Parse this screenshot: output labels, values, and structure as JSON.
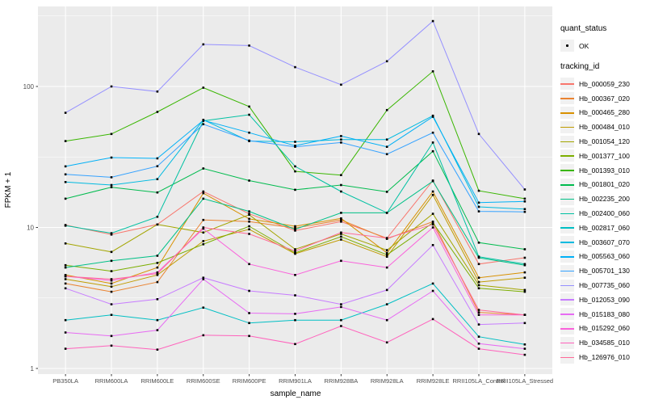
{
  "chart_data": {
    "type": "line",
    "title": "",
    "xlabel": "sample_name",
    "ylabel": "FPKM + 1",
    "y_scale": "log10",
    "ylim": [
      0.9,
      370
    ],
    "y_ticks": [
      "1",
      "10",
      "100"
    ],
    "y_tick_values": [
      1,
      10,
      100
    ],
    "grid": "on",
    "legend_position": "right",
    "x_categories": [
      "PB350LA",
      "RRIM600LA",
      "RRIM600LE",
      "RRIM600SE",
      "RRIM600PE",
      "RRIM901LA",
      "RRIM928BA",
      "RRIM928LA",
      "RRIM928LE",
      "RRII105LA_Control",
      "RRII105LA_Stressed"
    ],
    "legend": {
      "quant_title": "quant_status",
      "ok_label": "OK",
      "series_title": "tracking_id"
    },
    "series": [
      {
        "id": "Hb_000059_230",
        "color": "#F8766D",
        "values": [
          10.4,
          8.9,
          10.5,
          18,
          12.5,
          9.5,
          11,
          8.4,
          21.5,
          5.5,
          6.1
        ]
      },
      {
        "id": "Hb_000367_020",
        "color": "#EA8331",
        "values": [
          4.0,
          3.5,
          4.1,
          11.3,
          11.0,
          9.9,
          11.3,
          8.3,
          11.0,
          2.5,
          2.4
        ]
      },
      {
        "id": "Hb_000465_280",
        "color": "#D89000",
        "values": [
          4.6,
          4.0,
          5.2,
          17.5,
          11.5,
          10.2,
          11.6,
          6.6,
          18.0,
          4.4,
          4.8
        ]
      },
      {
        "id": "Hb_000484_010",
        "color": "#C09B00",
        "values": [
          4.3,
          3.8,
          4.6,
          8.0,
          9.7,
          6.5,
          8.2,
          6.2,
          17.0,
          4.1,
          4.4
        ]
      },
      {
        "id": "Hb_001054_120",
        "color": "#A3A500",
        "values": [
          7.7,
          6.7,
          10.5,
          9.2,
          12.3,
          7.0,
          9.0,
          6.9,
          12.5,
          3.9,
          3.6
        ]
      },
      {
        "id": "Hb_001377_100",
        "color": "#7CAE00",
        "values": [
          5.4,
          4.9,
          5.6,
          7.6,
          10.2,
          6.6,
          8.6,
          6.4,
          10.8,
          3.7,
          3.5
        ]
      },
      {
        "id": "Hb_001393_010",
        "color": "#39B600",
        "values": [
          41,
          46,
          66,
          98,
          72,
          25,
          23.5,
          68,
          128,
          18.2,
          16
        ]
      },
      {
        "id": "Hb_001801_020",
        "color": "#00BB4E",
        "values": [
          16,
          19.3,
          17.7,
          26.2,
          21.5,
          18.5,
          20,
          17.9,
          34.7,
          7.8,
          7.0
        ]
      },
      {
        "id": "Hb_002235_200",
        "color": "#00C087",
        "values": [
          5.2,
          5.8,
          6.3,
          16,
          13,
          9.7,
          12.7,
          12.7,
          21.3,
          6.1,
          5.4
        ]
      },
      {
        "id": "Hb_002400_060",
        "color": "#00C1A3",
        "values": [
          10.3,
          9.1,
          11.9,
          57,
          63,
          27.1,
          18,
          12.7,
          40,
          6.2,
          5.5
        ]
      },
      {
        "id": "Hb_002817_060",
        "color": "#00BFC4",
        "values": [
          2.2,
          2.4,
          2.2,
          2.7,
          2.1,
          2.2,
          2.2,
          2.85,
          4.0,
          1.68,
          1.48
        ]
      },
      {
        "id": "Hb_003607_070",
        "color": "#00BAE0",
        "values": [
          21,
          20,
          22,
          58,
          41,
          40.5,
          42,
          42,
          62,
          14,
          13.5
        ]
      },
      {
        "id": "Hb_005563_060",
        "color": "#00B0F6",
        "values": [
          27.1,
          31.3,
          30.9,
          57.5,
          47,
          38,
          44.5,
          37.3,
          61,
          15,
          15.3
        ]
      },
      {
        "id": "Hb_005701_130",
        "color": "#35A2FF",
        "values": [
          23.8,
          22.7,
          27.2,
          54,
          41.3,
          37.3,
          40,
          33.1,
          47,
          13,
          12.9
        ]
      },
      {
        "id": "Hb_007735_060",
        "color": "#9590FF",
        "values": [
          65,
          100,
          92,
          199,
          195,
          137,
          103,
          151,
          291,
          46,
          18.6
        ]
      },
      {
        "id": "Hb_012053_090",
        "color": "#C77CFF",
        "values": [
          3.7,
          2.85,
          3.1,
          4.4,
          3.55,
          3.3,
          2.85,
          3.6,
          7.5,
          2.05,
          2.1
        ]
      },
      {
        "id": "Hb_015183_080",
        "color": "#E76BF3",
        "values": [
          1.8,
          1.7,
          1.87,
          4.3,
          2.47,
          2.44,
          2.73,
          2.2,
          3.55,
          1.5,
          1.38
        ]
      },
      {
        "id": "Hb_015292_060",
        "color": "#FA62DB",
        "values": [
          4.5,
          4.2,
          4.8,
          9.8,
          5.5,
          4.6,
          5.8,
          5.2,
          10.0,
          2.4,
          2.4
        ]
      },
      {
        "id": "Hb_034585_010",
        "color": "#FF62BC",
        "values": [
          1.38,
          1.45,
          1.36,
          1.72,
          1.7,
          1.49,
          2.0,
          1.53,
          2.24,
          1.38,
          1.25
        ]
      },
      {
        "id": "Hb_126976_010",
        "color": "#FF6A98",
        "values": [
          4.5,
          4.3,
          4.7,
          10.0,
          9.0,
          6.8,
          9.2,
          8.4,
          10.5,
          2.6,
          2.4
        ]
      }
    ]
  },
  "colors": {
    "panel_bg": "#EBEBEB",
    "grid": "#FFFFFF",
    "tick_text": "#4D4D4D",
    "tick_mark": "#333333",
    "point": "#000000",
    "page_bg": "#FFFFFF"
  }
}
